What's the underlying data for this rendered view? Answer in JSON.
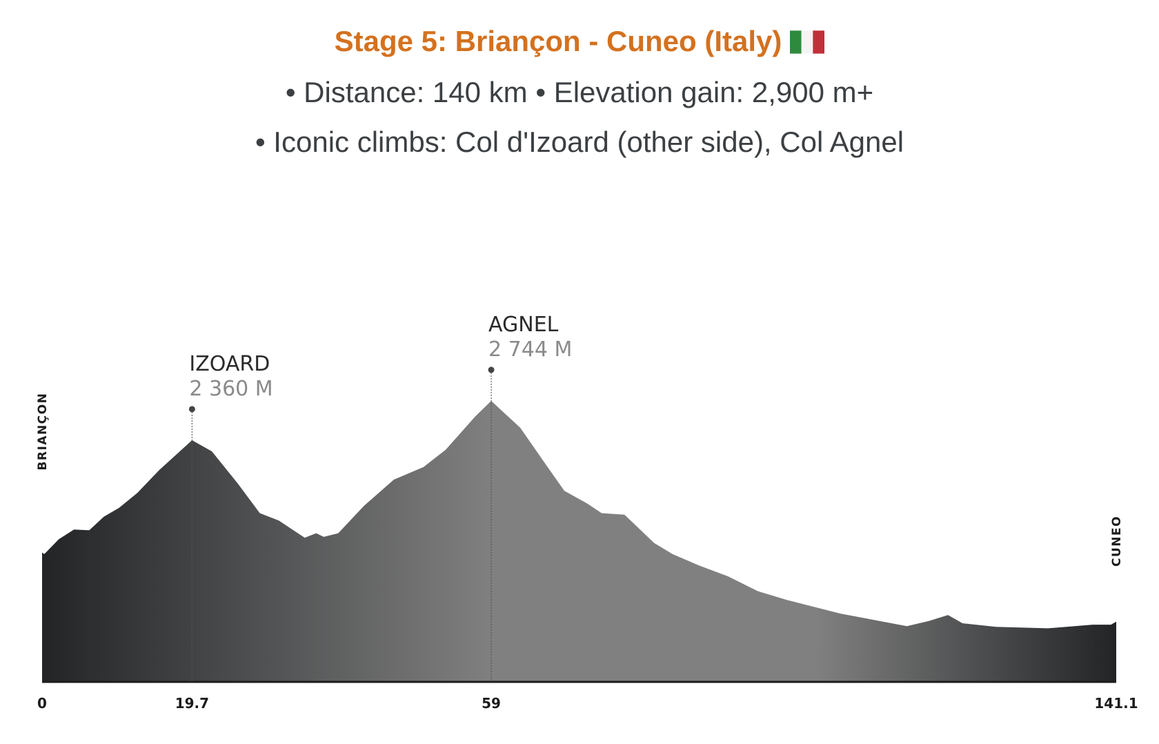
{
  "header": {
    "title": "Stage 5: Briançon - Cuneo (Italy)",
    "flag_icon": "italy-flag-icon",
    "line1": "• Distance: 140 km • Elevation gain: 2,900 m+",
    "line2": "• Iconic climbs: Col d'Izoard (other side), Col Agnel"
  },
  "chart_data": {
    "type": "area",
    "title": "",
    "xlabel": "",
    "ylabel": "",
    "x_unit": "km",
    "y_unit": "m",
    "xlim": [
      0,
      141.1
    ],
    "x_tick_labels": [
      "0",
      "19.7",
      "59",
      "141.1"
    ],
    "x_ticks": [
      0,
      19.7,
      59,
      141.1
    ],
    "grid": false,
    "start_label": "BRIANÇON",
    "end_label": "CUNEO",
    "peaks": [
      {
        "name": "IZOARD",
        "elevation_label": "2 360 M",
        "km": 19.7,
        "elevation": 2360
      },
      {
        "name": "AGNEL",
        "elevation_label": "2 744 M",
        "km": 59,
        "elevation": 2744
      }
    ],
    "fill_colors": {
      "edge": "#222426",
      "middle": "#808080"
    },
    "profile": [
      [
        0,
        1263
      ],
      [
        0.3,
        1249
      ],
      [
        2.2,
        1394
      ],
      [
        4.2,
        1488
      ],
      [
        6.2,
        1481
      ],
      [
        8.1,
        1612
      ],
      [
        10.1,
        1699
      ],
      [
        12.5,
        1844
      ],
      [
        15.4,
        2069
      ],
      [
        19.7,
        2360
      ],
      [
        22.3,
        2251
      ],
      [
        25.7,
        1938
      ],
      [
        28.6,
        1648
      ],
      [
        31.1,
        1575
      ],
      [
        34.5,
        1408
      ],
      [
        36.0,
        1452
      ],
      [
        37.0,
        1416
      ],
      [
        38.9,
        1452
      ],
      [
        42.3,
        1721
      ],
      [
        46.2,
        1975
      ],
      [
        50.1,
        2098
      ],
      [
        53.0,
        2265
      ],
      [
        56.9,
        2592
      ],
      [
        59,
        2744
      ],
      [
        62.8,
        2483
      ],
      [
        66.2,
        2120
      ],
      [
        68.6,
        1866
      ],
      [
        71.6,
        1742
      ],
      [
        73.5,
        1648
      ],
      [
        76.5,
        1633
      ],
      [
        80.4,
        1357
      ],
      [
        82.8,
        1249
      ],
      [
        86.2,
        1140
      ],
      [
        90.1,
        1031
      ],
      [
        94.0,
        886
      ],
      [
        97.9,
        799
      ],
      [
        104.8,
        668
      ],
      [
        113.6,
        544
      ],
      [
        116.5,
        595
      ],
      [
        119.0,
        653
      ],
      [
        120.9,
        573
      ],
      [
        125.3,
        537
      ],
      [
        132.1,
        523
      ],
      [
        138.0,
        559
      ],
      [
        140.4,
        559
      ],
      [
        141.1,
        588
      ]
    ]
  }
}
